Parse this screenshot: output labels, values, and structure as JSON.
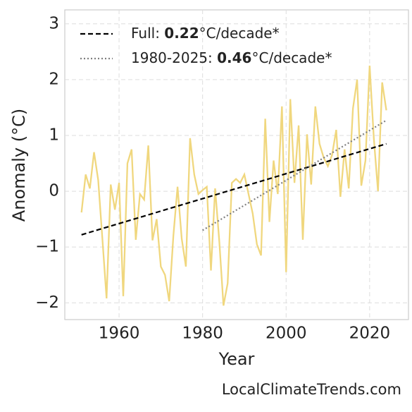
{
  "chart_data": {
    "type": "line",
    "x_label": "Year",
    "y_label": "Anomaly (°C)",
    "source": "LocalClimateTrends.com",
    "xlim": [
      1947,
      2029.3
    ],
    "ylim": [
      -2.3,
      3.25
    ],
    "xticks": [
      1960,
      1980,
      2000,
      2020
    ],
    "yticks": [
      {
        "value": -2,
        "label": "−2"
      },
      {
        "value": -1,
        "label": "−1"
      },
      0,
      1,
      2,
      3
    ],
    "grid": true,
    "legend": "upper left",
    "series": [
      {
        "role": "data",
        "color": "#f0d77e",
        "x": [
          1951,
          1952,
          1953,
          1954,
          1955,
          1956,
          1957,
          1958,
          1959,
          1960,
          1961,
          1962,
          1963,
          1964,
          1965,
          1966,
          1967,
          1968,
          1969,
          1970,
          1971,
          1972,
          1973,
          1974,
          1975,
          1976,
          1977,
          1978,
          1979,
          1980,
          1981,
          1982,
          1983,
          1984,
          1985,
          1986,
          1987,
          1988,
          1989,
          1990,
          1991,
          1992,
          1993,
          1994,
          1995,
          1996,
          1997,
          1998,
          1999,
          2000,
          2001,
          2002,
          2003,
          2004,
          2005,
          2006,
          2007,
          2008,
          2009,
          2010,
          2011,
          2012,
          2013,
          2014,
          2015,
          2016,
          2017,
          2018,
          2019,
          2020,
          2021,
          2022,
          2023,
          2024
        ],
        "values": [
          -0.38,
          0.3,
          0.05,
          0.7,
          0.2,
          -0.85,
          -1.92,
          0.12,
          -0.33,
          0.15,
          -1.88,
          0.5,
          0.75,
          -0.87,
          -0.05,
          -0.15,
          0.82,
          -0.88,
          -0.5,
          -1.35,
          -1.5,
          -1.97,
          -0.8,
          0.08,
          -0.85,
          -1.35,
          0.95,
          0.3,
          -0.05,
          0.02,
          0.08,
          -1.42,
          0.05,
          -0.9,
          -2.05,
          -1.65,
          0.15,
          0.22,
          0.15,
          0.3,
          -0.05,
          -0.4,
          -0.95,
          -1.15,
          1.3,
          -0.55,
          0.55,
          -0.05,
          1.52,
          -1.45,
          1.65,
          0.15,
          1.18,
          -0.87,
          1.02,
          0.12,
          1.52,
          0.85,
          0.6,
          0.45,
          0.65,
          1.1,
          -0.1,
          0.75,
          0.05,
          1.48,
          2.0,
          0.1,
          0.55,
          2.25,
          0.95,
          0.0,
          1.95,
          1.45
        ]
      },
      {
        "role": "trend",
        "name": "Full:",
        "slope": 0.22,
        "slope_unit": "°C/decade*",
        "color": "#000000",
        "dash": "7,4",
        "x": [
          1951,
          2024
        ],
        "values": [
          -0.78,
          0.85
        ]
      },
      {
        "role": "trend",
        "name": "1980-2025:",
        "slope": 0.46,
        "slope_unit": "°C/decade*",
        "color": "#808080",
        "dash": "2,3",
        "x": [
          1980,
          2024
        ],
        "values": [
          -0.7,
          1.27
        ]
      }
    ]
  }
}
